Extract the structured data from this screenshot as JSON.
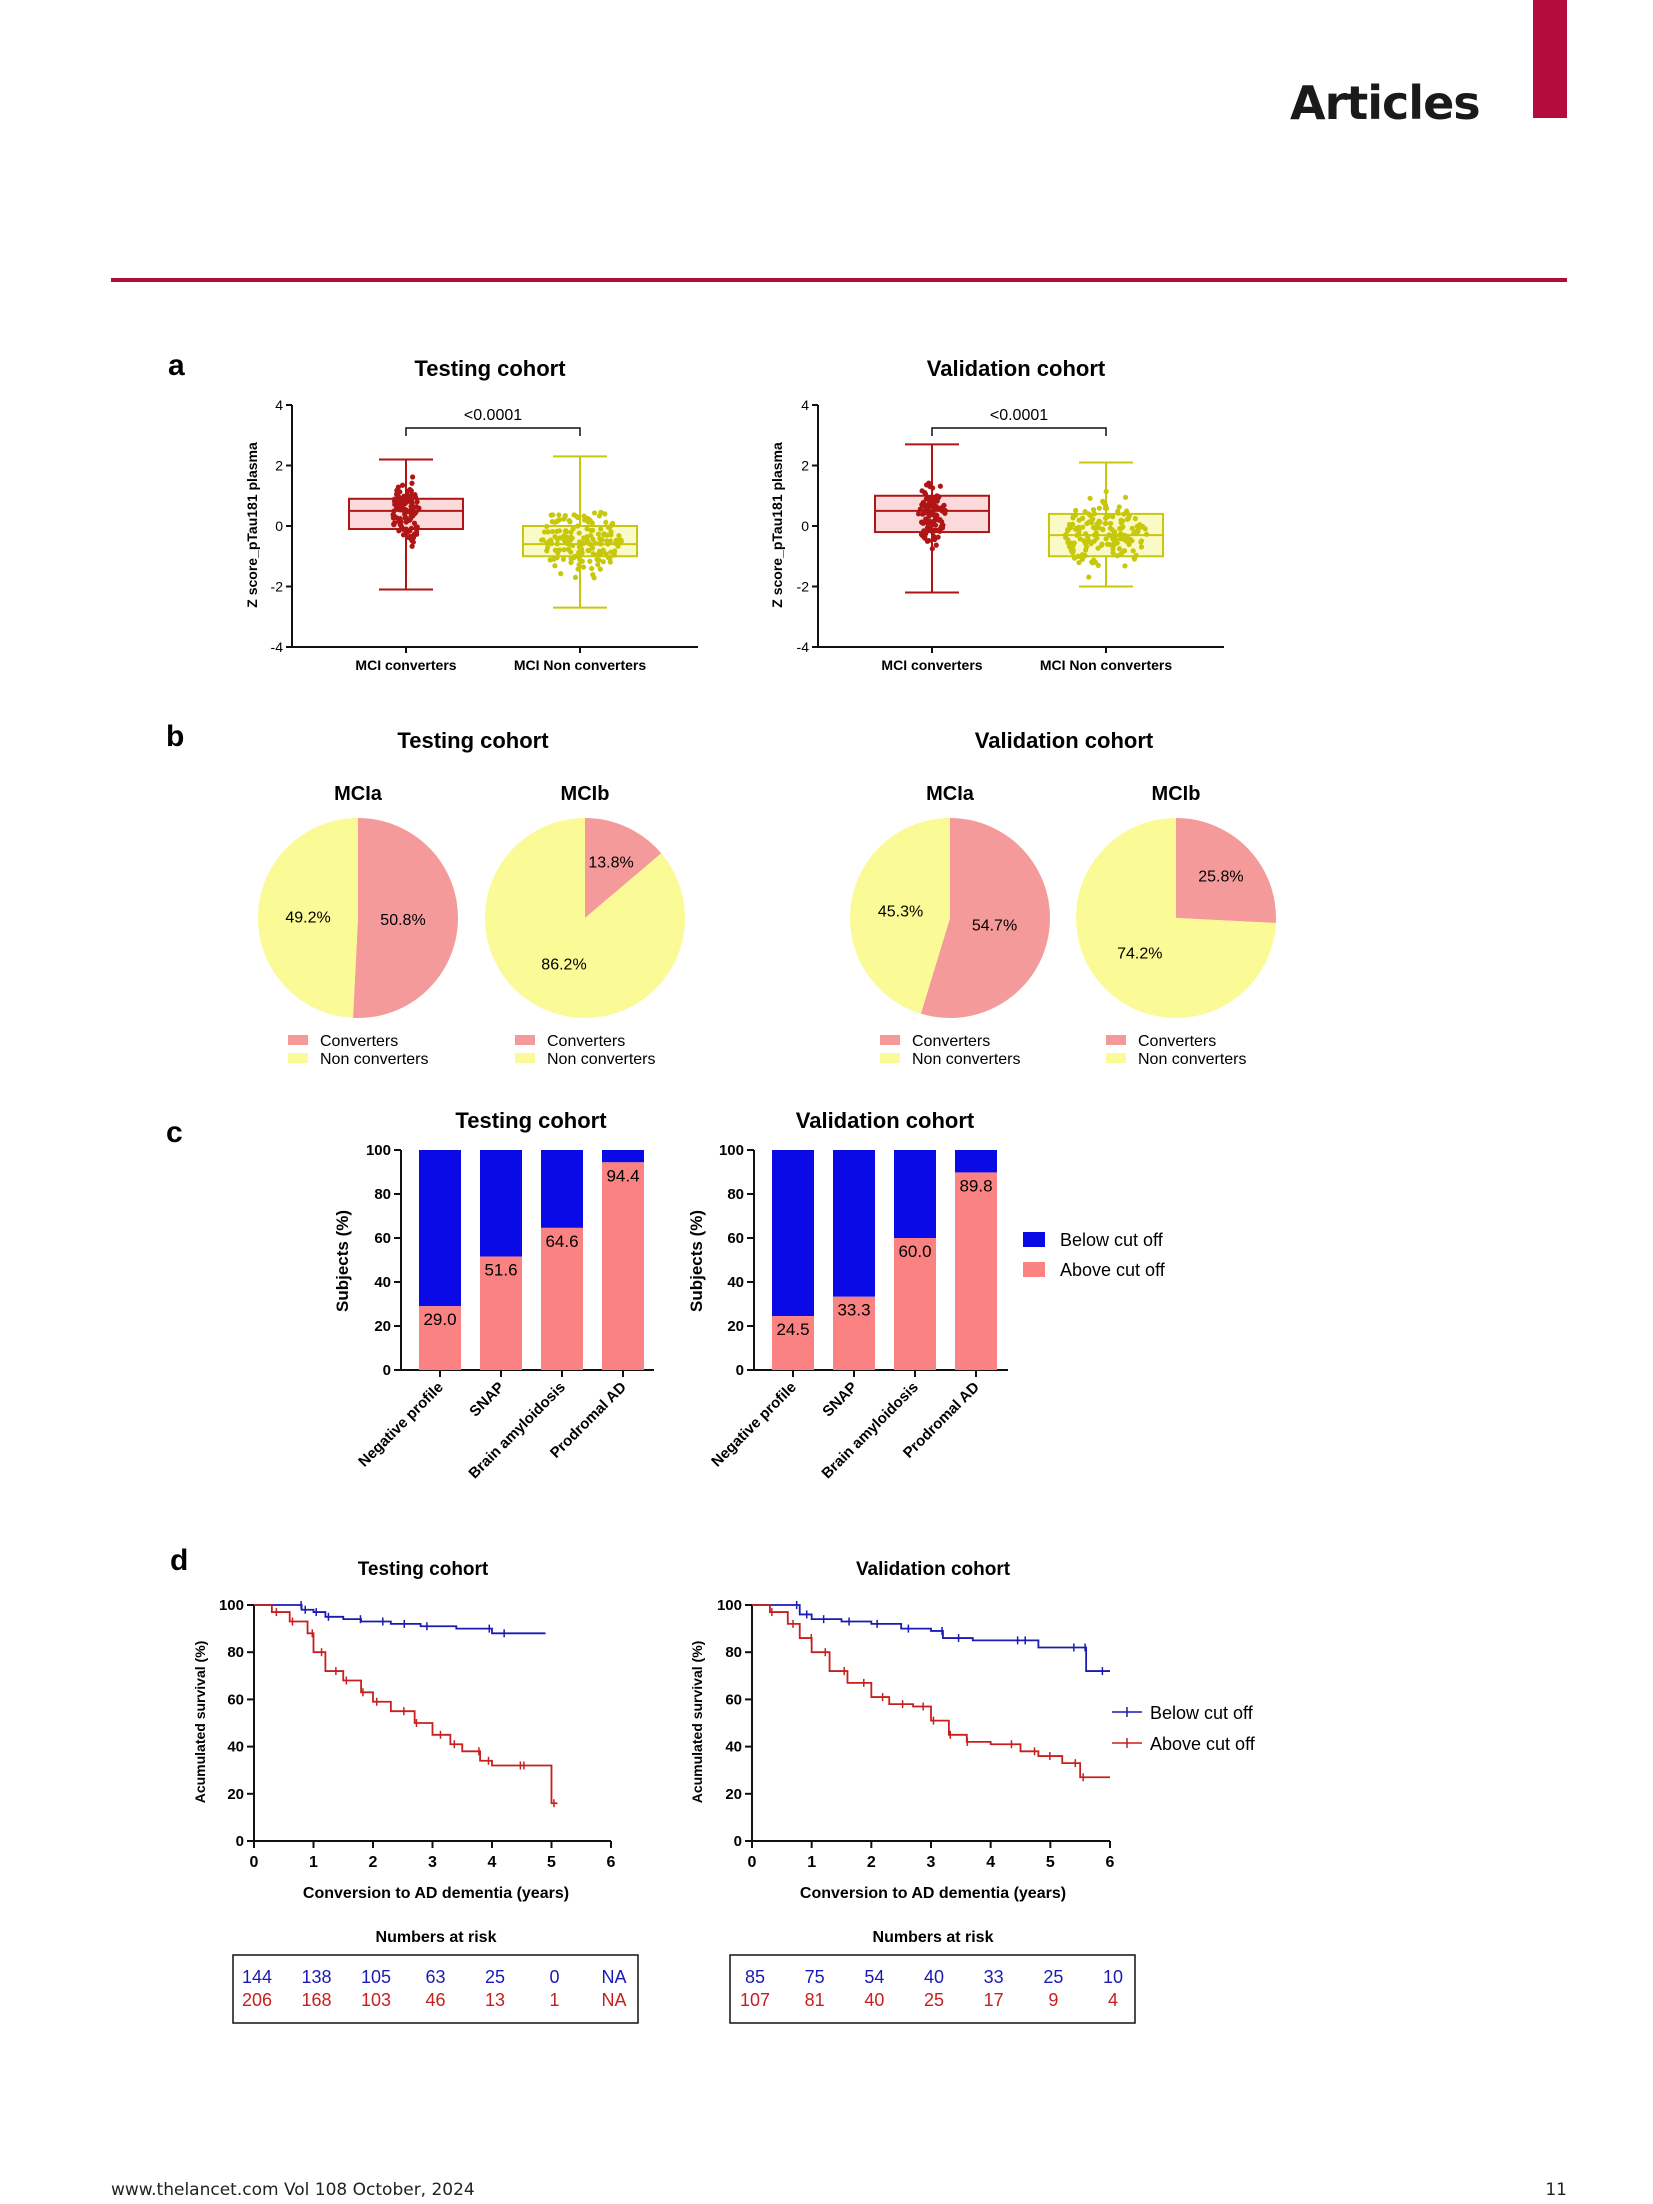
{
  "header": {
    "title": "Articles",
    "accent_color": "#b40c3c"
  },
  "footer": {
    "left": "www.thelancet.com Vol 108 October, 2024",
    "right": "11"
  },
  "panels": {
    "a": "a",
    "b": "b",
    "c": "c",
    "d": "d"
  },
  "colors": {
    "dark_red": "#b01515",
    "light_red": "#fadadb",
    "olive": "#c7c80c",
    "light_yellow": "#fafac8",
    "pie_red": "#f59a9a",
    "pie_yellow": "#fafa96",
    "bar_blue": "#0a0ae6",
    "bar_red": "#fa8282",
    "km_blue": "#1a1ab4",
    "km_red": "#c81e1e"
  },
  "chart_data": [
    {
      "id": "a-testing",
      "type": "box",
      "title": "Testing cohort",
      "ylabel": "Z score_pTau181 plasma",
      "ylim": [
        -4,
        4
      ],
      "yticks": [
        "4",
        "2",
        "0",
        "-2",
        "-4"
      ],
      "yticks_values": [
        4,
        2,
        0,
        -2,
        -4
      ],
      "categories": [
        "MCI converters",
        "MCI Non converters"
      ],
      "boxes": [
        {
          "min": -2.1,
          "q1": -0.1,
          "median": 0.5,
          "q3": 0.9,
          "max": 2.2
        },
        {
          "min": -2.7,
          "q1": -1.0,
          "median": -0.6,
          "q3": 0.0,
          "max": 2.3
        }
      ],
      "significance": "<0.0001"
    },
    {
      "id": "a-validation",
      "type": "box",
      "title": "Validation cohort",
      "ylabel": "Z score_pTau181 plasma",
      "ylim": [
        -4,
        4
      ],
      "yticks": [
        "4",
        "2",
        "0",
        "-2",
        "-4"
      ],
      "yticks_values": [
        4,
        2,
        0,
        -2,
        -4
      ],
      "categories": [
        "MCI converters",
        "MCI Non converters"
      ],
      "boxes": [
        {
          "min": -2.2,
          "q1": -0.2,
          "median": 0.5,
          "q3": 1.0,
          "max": 2.7
        },
        {
          "min": -2.0,
          "q1": -1.0,
          "median": -0.3,
          "q3": 0.4,
          "max": 2.1
        }
      ],
      "significance": "<0.0001"
    },
    {
      "id": "b-testing",
      "type": "pie",
      "title": "Testing cohort",
      "pies": [
        {
          "subtitle": "MCIa",
          "slices": [
            {
              "name": "Converters",
              "value": 50.8,
              "label": "50.8%"
            },
            {
              "name": "Non converters",
              "value": 49.2,
              "label": "49.2%"
            }
          ]
        },
        {
          "subtitle": "MCIb",
          "slices": [
            {
              "name": "Converters",
              "value": 13.8,
              "label": "13.8%"
            },
            {
              "name": "Non converters",
              "value": 86.2,
              "label": "86.2%"
            }
          ]
        }
      ],
      "legend": [
        "Converters",
        "Non converters"
      ]
    },
    {
      "id": "b-validation",
      "type": "pie",
      "title": "Validation cohort",
      "pies": [
        {
          "subtitle": "MCIa",
          "slices": [
            {
              "name": "Converters",
              "value": 54.7,
              "label": "54.7%"
            },
            {
              "name": "Non converters",
              "value": 45.3,
              "label": "45.3%"
            }
          ]
        },
        {
          "subtitle": "MCIb",
          "slices": [
            {
              "name": "Converters",
              "value": 25.8,
              "label": "25.8%"
            },
            {
              "name": "Non converters",
              "value": 74.2,
              "label": "74.2%"
            }
          ]
        }
      ],
      "legend": [
        "Converters",
        "Non converters"
      ]
    },
    {
      "id": "c-testing",
      "type": "bar",
      "stacked": true,
      "title": "Testing cohort",
      "ylabel": "Subjects (%)",
      "ylim": [
        0,
        100
      ],
      "yticks": [
        "100",
        "80",
        "60",
        "40",
        "20",
        "0"
      ],
      "yticks_values": [
        100,
        80,
        60,
        40,
        20,
        0
      ],
      "categories": [
        "Negative profile",
        "SNAP",
        "Brain amyloidosis",
        "Prodromal AD"
      ],
      "series": [
        {
          "name": "Above cut off",
          "values": [
            29.0,
            51.6,
            64.6,
            94.4
          ],
          "labels": [
            "29.0",
            "51.6",
            "64.6",
            "94.4"
          ]
        },
        {
          "name": "Below cut off",
          "values": [
            71.0,
            48.4,
            35.4,
            5.6
          ]
        }
      ]
    },
    {
      "id": "c-validation",
      "type": "bar",
      "stacked": true,
      "title": "Validation cohort",
      "ylabel": "Subjects (%)",
      "ylim": [
        0,
        100
      ],
      "yticks": [
        "100",
        "80",
        "60",
        "40",
        "20",
        "0"
      ],
      "yticks_values": [
        100,
        80,
        60,
        40,
        20,
        0
      ],
      "categories": [
        "Negative profile",
        "SNAP",
        "Brain amyloidosis",
        "Prodromal AD"
      ],
      "series": [
        {
          "name": "Above cut off",
          "values": [
            24.5,
            33.3,
            60.0,
            89.8
          ],
          "labels": [
            "24.5",
            "33.3",
            "60.0",
            "89.8"
          ]
        },
        {
          "name": "Below cut off",
          "values": [
            75.5,
            66.7,
            40.0,
            10.2
          ]
        }
      ],
      "legend": [
        "Below cut off",
        "Above cut off"
      ]
    },
    {
      "id": "d-testing",
      "type": "line",
      "step": true,
      "title": "Testing cohort",
      "xlabel": "Conversion to AD dementia (years)",
      "ylabel": "Acumulated survival (%)",
      "xlim": [
        0,
        6
      ],
      "ylim": [
        0,
        100
      ],
      "xticks": [
        "0",
        "1",
        "2",
        "3",
        "4",
        "5",
        "6"
      ],
      "xticks_values": [
        0,
        1,
        2,
        3,
        4,
        5,
        6
      ],
      "yticks": [
        "100",
        "80",
        "60",
        "40",
        "20",
        "0"
      ],
      "yticks_values": [
        100,
        80,
        60,
        40,
        20,
        0
      ],
      "series": [
        {
          "name": "Below cut off",
          "x": [
            0,
            0.5,
            0.8,
            1.0,
            1.2,
            1.5,
            1.8,
            2.3,
            2.8,
            3.4,
            4.0,
            4.9
          ],
          "y": [
            100,
            100,
            98,
            97,
            95,
            94,
            93,
            92,
            91,
            90,
            88,
            88
          ]
        },
        {
          "name": "Above cut off",
          "x": [
            0,
            0.3,
            0.6,
            0.9,
            1.0,
            1.2,
            1.5,
            1.8,
            2.0,
            2.3,
            2.7,
            3.0,
            3.3,
            3.5,
            3.8,
            4.0,
            4.5,
            5.0,
            5.1
          ],
          "y": [
            100,
            97,
            93,
            88,
            80,
            72,
            68,
            63,
            59,
            55,
            50,
            45,
            41,
            38,
            34,
            32,
            32,
            16,
            16
          ]
        }
      ],
      "risk_table": {
        "title": "Numbers at risk",
        "below": [
          "144",
          "138",
          "105",
          "63",
          "25",
          "0",
          "NA"
        ],
        "above": [
          "206",
          "168",
          "103",
          "46",
          "13",
          "1",
          "NA"
        ]
      }
    },
    {
      "id": "d-validation",
      "type": "line",
      "step": true,
      "title": "Validation cohort",
      "xlabel": "Conversion to AD dementia (years)",
      "ylabel": "Acumulated survival (%)",
      "xlim": [
        0,
        6
      ],
      "ylim": [
        0,
        100
      ],
      "xticks": [
        "0",
        "1",
        "2",
        "3",
        "4",
        "5",
        "6"
      ],
      "xticks_values": [
        0,
        1,
        2,
        3,
        4,
        5,
        6
      ],
      "yticks": [
        "100",
        "80",
        "60",
        "40",
        "20",
        "0"
      ],
      "yticks_values": [
        100,
        80,
        60,
        40,
        20,
        0
      ],
      "series": [
        {
          "name": "Below cut off",
          "x": [
            0,
            0.5,
            0.8,
            1.0,
            1.5,
            2.0,
            2.5,
            3.0,
            3.2,
            3.7,
            4.5,
            4.8,
            5.4,
            5.6,
            6.0
          ],
          "y": [
            100,
            100,
            96,
            94,
            93,
            92,
            90,
            89,
            86,
            85,
            85,
            82,
            82,
            72,
            72
          ]
        },
        {
          "name": "Above cut off",
          "x": [
            0,
            0.3,
            0.6,
            0.8,
            1.0,
            1.3,
            1.6,
            2.0,
            2.3,
            2.7,
            3.0,
            3.3,
            3.6,
            4.0,
            4.5,
            4.8,
            5.2,
            5.5,
            6.0
          ],
          "y": [
            100,
            97,
            92,
            86,
            80,
            72,
            67,
            61,
            58,
            57,
            51,
            45,
            42,
            41,
            38,
            36,
            33,
            27,
            27
          ]
        }
      ],
      "risk_table": {
        "title": "Numbers at risk",
        "below": [
          "85",
          "75",
          "54",
          "40",
          "33",
          "25",
          "10"
        ],
        "above": [
          "107",
          "81",
          "40",
          "25",
          "17",
          "9",
          "4"
        ]
      },
      "legend": [
        "Below cut off",
        "Above cut off"
      ]
    }
  ]
}
